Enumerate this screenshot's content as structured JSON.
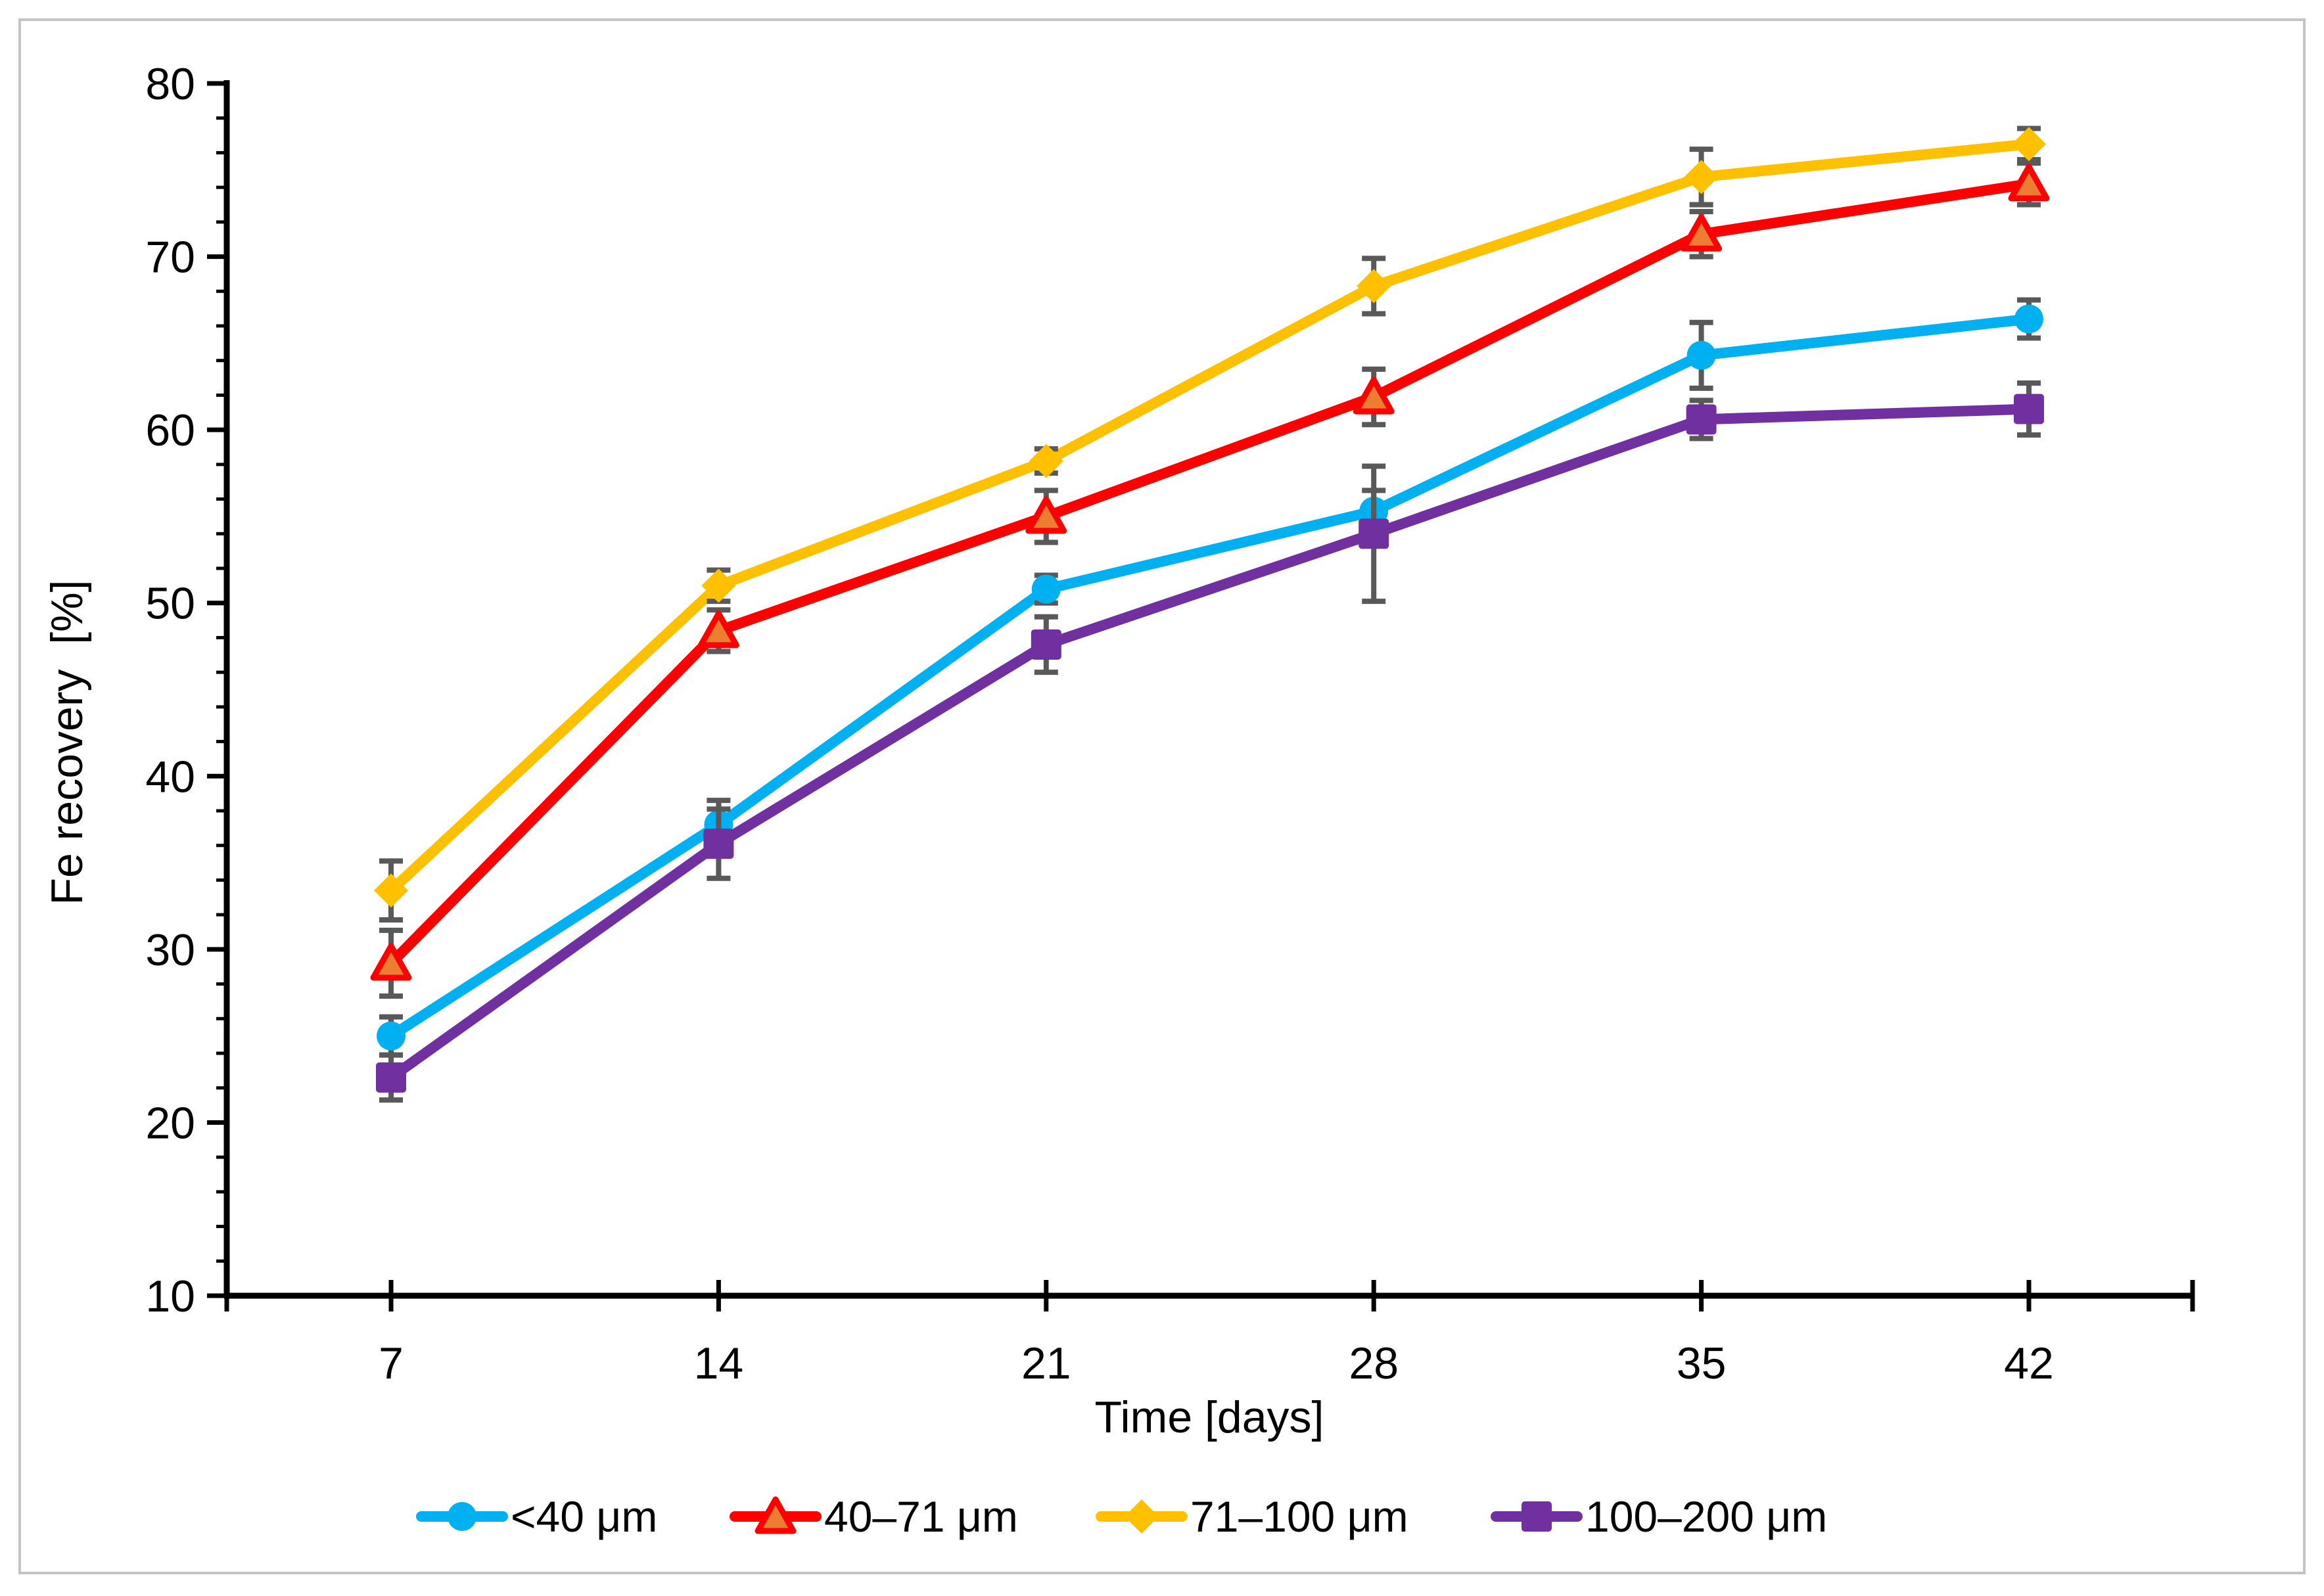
{
  "figure": {
    "background": "#ffffff",
    "border_color": "#c4c4c4"
  },
  "chart_data": {
    "type": "line",
    "title": "",
    "xlabel": "Time [days]",
    "ylabel": "Fe recovery  [%]",
    "categories": [
      7,
      14,
      21,
      28,
      35,
      42
    ],
    "x_tick_labels": [
      "7",
      "14",
      "21",
      "28",
      "35",
      "42"
    ],
    "y_tick_labels": [
      "10",
      "20",
      "30",
      "40",
      "50",
      "60",
      "70",
      "80"
    ],
    "ylim": [
      10,
      80
    ],
    "y_major_step": 10,
    "y_minor_step": 2,
    "grid": false,
    "legend_position": "bottom",
    "axis_color": "#000000",
    "error_bar_color": "#595959",
    "series": [
      {
        "name": "<40 μm",
        "marker": "circle",
        "color": "#00B0F0",
        "values": [
          25.0,
          37.2,
          50.8,
          55.3,
          64.3,
          66.4
        ],
        "errors": [
          1.1,
          1.4,
          0.8,
          1.2,
          1.9,
          1.1
        ]
      },
      {
        "name": "40–71 μm",
        "marker": "triangle",
        "color": "#FF0000",
        "marker_fill": "#ED7D31",
        "values": [
          29.2,
          48.4,
          55.0,
          61.9,
          71.3,
          74.2
        ],
        "errors": [
          1.9,
          1.2,
          1.5,
          1.6,
          1.3,
          1.2
        ]
      },
      {
        "name": "71–100 μm",
        "marker": "diamond",
        "color": "#FFC000",
        "values": [
          33.4,
          51.0,
          58.2,
          68.3,
          74.6,
          76.5
        ],
        "errors": [
          1.7,
          0.9,
          0.7,
          1.6,
          1.6,
          0.9
        ]
      },
      {
        "name": "100–200 μm",
        "marker": "square",
        "color": "#7030A0",
        "values": [
          22.6,
          36.1,
          47.6,
          54.0,
          60.6,
          61.2
        ],
        "errors": [
          1.3,
          2.0,
          1.6,
          3.9,
          1.1,
          1.5
        ]
      }
    ]
  }
}
